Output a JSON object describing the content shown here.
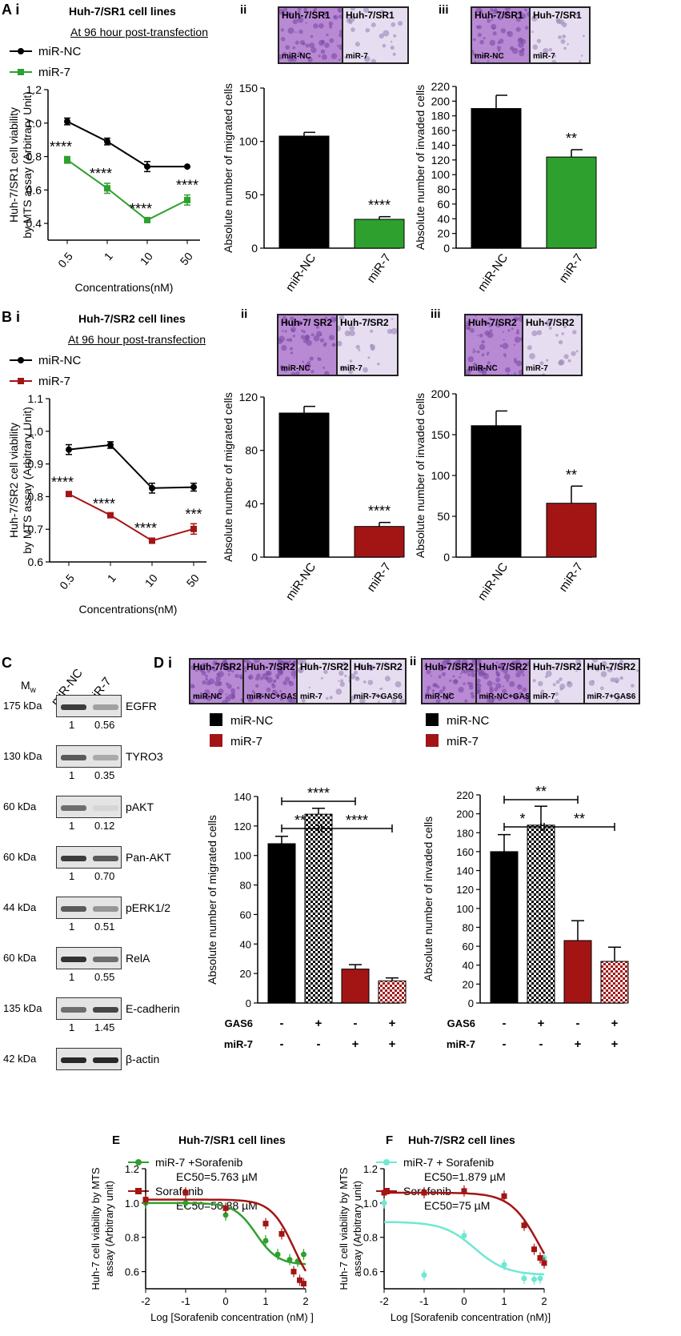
{
  "panels": {
    "A": "A i",
    "A_ii": "ii",
    "A_iii": "iii",
    "B": "B i",
    "B_ii": "ii",
    "B_iii": "iii",
    "C": "C",
    "D": "D i",
    "D_ii": "ii",
    "E": "E",
    "F": "F"
  },
  "titles": {
    "a_title": "Huh-7/SR1 cell lines",
    "a_sub": "At 96 hour post-transfection",
    "b_title": "Huh-7/SR2 cell lines",
    "b_sub": "At 96 hour post-transfection",
    "e_title": "Huh-7/SR1 cell lines",
    "f_title": "Huh-7/SR2 cell lines"
  },
  "micrographs": {
    "a_ii": [
      {
        "top": "Huh-7/SR1",
        "bottom": "miR-NC"
      },
      {
        "top": "Huh-7/SR1",
        "bottom": "miR-7"
      }
    ],
    "a_iii": [
      {
        "top": "Huh-7/SR1",
        "bottom": "miR-NC"
      },
      {
        "top": "Huh-7/SR1",
        "bottom": "miR-7"
      }
    ],
    "b_ii": [
      {
        "top": "Huh-7/ SR2",
        "bottom": "miR-NC"
      },
      {
        "top": "Huh-7/SR2",
        "bottom": "miR-7"
      }
    ],
    "b_iii": [
      {
        "top": "Huh-7/SR2",
        "bottom": "miR-NC"
      },
      {
        "top": "Huh-7/SR2",
        "bottom": "miR-7"
      }
    ],
    "d_i": [
      {
        "top": "Huh-7/SR2",
        "bottom": "miR-NC"
      },
      {
        "top": "Huh-7/SR2",
        "bottom": "miR-NC+GAS6"
      },
      {
        "top": "Huh-7/SR2",
        "bottom": "miR-7"
      },
      {
        "top": "Huh-7/SR2",
        "bottom": "miR-7+GAS6"
      }
    ],
    "d_ii": [
      {
        "top": "Huh-7/SR2",
        "bottom": "miR-NC"
      },
      {
        "top": "Huh-7/SR2",
        "bottom": "miR-NC+GAS6"
      },
      {
        "top": "Huh-7/SR2",
        "bottom": "miR-7"
      },
      {
        "top": "Huh-7/SR2",
        "bottom": "miR-7+GAS6"
      }
    ]
  },
  "blot": {
    "mw_header": "M",
    "mw_sub": "w",
    "lanes": [
      "miR-NC",
      "miR-7"
    ],
    "rows": [
      {
        "mw": "175 kDa",
        "protein": "EGFR",
        "q": [
          "1",
          "0.56"
        ],
        "intensity": [
          0.85,
          0.35
        ]
      },
      {
        "mw": "130 kDa",
        "protein": "TYRO3",
        "q": [
          "1",
          "0.35"
        ],
        "intensity": [
          0.7,
          0.3
        ]
      },
      {
        "mw": "60 kDa",
        "protein": "pAKT",
        "q": [
          "1",
          "0.12"
        ],
        "intensity": [
          0.6,
          0.08
        ]
      },
      {
        "mw": "60 kDa",
        "protein": "Pan-AKT",
        "q": [
          "1",
          "0.70"
        ],
        "intensity": [
          0.85,
          0.7
        ]
      },
      {
        "mw": "44 kDa",
        "protein": "pERK1/2",
        "q": [
          "1",
          "0.51"
        ],
        "intensity": [
          0.7,
          0.4
        ]
      },
      {
        "mw": "60 kDa",
        "protein": "RelA",
        "q": [
          "1",
          "0.55"
        ],
        "intensity": [
          0.9,
          0.6
        ]
      },
      {
        "mw": "135 kDa",
        "protein": "E-cadherin",
        "q": [
          "1",
          "1.45"
        ],
        "intensity": [
          0.6,
          0.8
        ]
      },
      {
        "mw": "42 kDa",
        "protein": "β-actin",
        "q": null,
        "intensity": [
          0.95,
          0.95
        ]
      }
    ]
  },
  "colors": {
    "black": "#000000",
    "green": "#2ea02e",
    "red": "#a31515",
    "cyan": "#6fe8d2",
    "purple": "#9b6fc4"
  },
  "chart_data": [
    {
      "id": "a_i",
      "type": "line",
      "x": [
        "0.5",
        "1",
        "10",
        "50"
      ],
      "series": [
        {
          "name": "miR-NC",
          "values": [
            1.01,
            0.89,
            0.74,
            0.74
          ],
          "errors": [
            0.02,
            0.02,
            0.03,
            0.0
          ]
        },
        {
          "name": "miR-7",
          "values": [
            0.78,
            0.61,
            0.42,
            0.54
          ],
          "errors": [
            0.02,
            0.03,
            0.01,
            0.03
          ]
        }
      ],
      "ylim": [
        0.3,
        1.2
      ],
      "yticks": [
        "0.4",
        "0.6",
        "0.8",
        "1.0",
        "1.2"
      ],
      "xlabel": "Concentrations(nM)",
      "ylabel": "Huh-7/SR1 cell viability",
      "ylabel2": "by MTS assay (Arbitrary Unit)",
      "annotations": [
        "****",
        "****",
        "****",
        "****"
      ]
    },
    {
      "id": "a_ii",
      "type": "bar",
      "categories": [
        "miR-NC",
        "miR-7"
      ],
      "values": [
        105,
        27
      ],
      "errors": [
        3.5,
        2.5
      ],
      "ylim": [
        0,
        150
      ],
      "yticks": [
        "0",
        "50",
        "100",
        "150"
      ],
      "ylabel": "Absolute number of migrated cells",
      "annotations": [
        "****"
      ]
    },
    {
      "id": "a_iii",
      "type": "bar",
      "categories": [
        "miR-NC",
        "miR-7"
      ],
      "values": [
        190,
        124
      ],
      "errors": [
        18,
        10
      ],
      "ylim": [
        0,
        220
      ],
      "yticks": [
        "0",
        "20",
        "40",
        "60",
        "80",
        "100",
        "120",
        "140",
        "160",
        "180",
        "200",
        "220"
      ],
      "ylabel": "Absolute number of invaded cells",
      "annotations": [
        "**"
      ]
    },
    {
      "id": "b_i",
      "type": "line",
      "x": [
        "0.5",
        "1",
        "10",
        "50"
      ],
      "series": [
        {
          "name": "miR-NC",
          "values": [
            0.944,
            0.958,
            0.826,
            0.829
          ],
          "errors": [
            0.015,
            0.01,
            0.015,
            0.012
          ]
        },
        {
          "name": "miR-7",
          "values": [
            0.808,
            0.743,
            0.665,
            0.701
          ],
          "errors": [
            0.006,
            0.005,
            0.008,
            0.016
          ]
        }
      ],
      "ylim": [
        0.6,
        1.1
      ],
      "yticks": [
        "0.6",
        "0.7",
        "0.8",
        "0.9",
        "1.0",
        "1.1"
      ],
      "xlabel": "Concentrations(nM)",
      "ylabel": "Huh-7/SR2 cell viability",
      "ylabel2": "by MTS assay (Arbitrary Unit)",
      "annotations": [
        "****",
        "****",
        "****",
        "***"
      ]
    },
    {
      "id": "b_ii",
      "type": "bar",
      "categories": [
        "miR-NC",
        "miR-7"
      ],
      "values": [
        108,
        23
      ],
      "errors": [
        5,
        3
      ],
      "ylim": [
        0,
        120
      ],
      "yticks": [
        "0",
        "40",
        "80",
        "120"
      ],
      "ylabel": "Absolute number of migrated cells",
      "annotations": [
        "****"
      ]
    },
    {
      "id": "b_iii",
      "type": "bar",
      "categories": [
        "miR-NC",
        "miR-7"
      ],
      "values": [
        161,
        66
      ],
      "errors": [
        18,
        21
      ],
      "ylim": [
        0,
        200
      ],
      "yticks": [
        "0",
        "50",
        "100",
        "150",
        "200"
      ],
      "ylabel": "Absolute number of invaded cells",
      "annotations": [
        "**"
      ]
    },
    {
      "id": "d_i",
      "type": "bar",
      "categories": [
        "miR-NC",
        "miR-NC+GAS6",
        "miR-7",
        "miR-7+GAS6"
      ],
      "values": [
        108,
        128,
        23,
        15
      ],
      "errors": [
        5,
        4,
        3,
        2
      ],
      "ylim": [
        0,
        140
      ],
      "yticks": [
        "0",
        "20",
        "40",
        "60",
        "80",
        "100",
        "120",
        "140"
      ],
      "ylabel": "Absolute number of migrated cells",
      "legend": [
        "miR-NC",
        "miR-7"
      ],
      "brackets": [
        {
          "from": 0,
          "to": 1,
          "label": "**"
        },
        {
          "from": 1,
          "to": 3,
          "label": "****"
        },
        {
          "from": 0,
          "to": 2,
          "label": "****"
        }
      ],
      "gas6_label": "GAS6",
      "gas6": [
        "-",
        "+",
        "-",
        "+"
      ],
      "mir7_label": "miR-7",
      "mir7": [
        "-",
        "-",
        "+",
        "+"
      ]
    },
    {
      "id": "d_ii",
      "type": "bar",
      "categories": [
        "miR-NC",
        "miR-NC+GAS6",
        "miR-7",
        "miR-7+GAS6"
      ],
      "values": [
        160,
        188,
        66,
        44
      ],
      "errors": [
        18,
        20,
        21,
        15
      ],
      "ylim": [
        0,
        220
      ],
      "yticks": [
        "0",
        "20",
        "40",
        "60",
        "80",
        "100",
        "120",
        "140",
        "160",
        "180",
        "200",
        "220"
      ],
      "ylabel": "Absolute number of invaded cells",
      "legend": [
        "miR-NC",
        "miR-7"
      ],
      "brackets": [
        {
          "from": 0,
          "to": 1,
          "label": "*"
        },
        {
          "from": 1,
          "to": 3,
          "label": "**"
        },
        {
          "from": 0,
          "to": 2,
          "label": "**"
        }
      ],
      "gas6_label": "GAS6",
      "gas6": [
        "-",
        "+",
        "-",
        "+"
      ],
      "mir7_label": "miR-7",
      "mir7": [
        "-",
        "-",
        "+",
        "+"
      ]
    },
    {
      "id": "e",
      "type": "scatter",
      "series": [
        {
          "name": "miR-7 +Sorafenib",
          "ec50": "EC50=5.763 µM",
          "points": [
            [
              -2,
              1.0
            ],
            [
              -1,
              1.0
            ],
            [
              0,
              0.93
            ],
            [
              1,
              0.78
            ],
            [
              1.3,
              0.7
            ],
            [
              1.6,
              0.67
            ],
            [
              1.8,
              0.66
            ],
            [
              1.95,
              0.7
            ]
          ],
          "curve": {
            "top": 1.0,
            "bottom": 0.64,
            "logec50": 0.76,
            "hill": 1.6
          }
        },
        {
          "name": "Sorafenib",
          "ec50": "EC50=50.88 µM",
          "points": [
            [
              -2,
              1.02
            ],
            [
              -1,
              1.06
            ],
            [
              0,
              0.97
            ],
            [
              1,
              0.88
            ],
            [
              1.4,
              0.82
            ],
            [
              1.7,
              0.6
            ],
            [
              1.85,
              0.55
            ],
            [
              1.95,
              0.53
            ]
          ],
          "curve": {
            "top": 1.02,
            "bottom": 0.45,
            "logec50": 1.71,
            "hill": 1.5
          }
        }
      ],
      "xlim": [
        -2,
        2
      ],
      "xticks": [
        "-2",
        "-1",
        "0",
        "1",
        "2"
      ],
      "ylim": [
        0.5,
        1.2
      ],
      "yticks": [
        "0.6",
        "0.8",
        "1.0",
        "1.2"
      ],
      "xlabel": "Log [Sorafenib concentration (nM) ]",
      "ylabel": "Huh-7 cell viability by MTS",
      "ylabel2": "assay (Arbitrary unit)"
    },
    {
      "id": "f",
      "type": "scatter",
      "series": [
        {
          "name": "miR-7 + Sorafenib",
          "ec50": "EC50=1.879 µM",
          "points": [
            [
              -2,
              1.0
            ],
            [
              -1,
              0.58
            ],
            [
              0,
              0.81
            ],
            [
              1,
              0.64
            ],
            [
              1.5,
              0.56
            ],
            [
              1.75,
              0.555
            ],
            [
              1.9,
              0.56
            ],
            [
              2,
              0.68
            ]
          ],
          "curve": {
            "top": 0.89,
            "bottom": 0.58,
            "logec50": 0.27,
            "hill": 1.1
          }
        },
        {
          "name": "Sorafenib",
          "ec50": "EC50=75 µM",
          "points": [
            [
              -2,
              1.06
            ],
            [
              -1,
              1.06
            ],
            [
              0,
              1.07
            ],
            [
              1,
              1.04
            ],
            [
              1.5,
              0.87
            ],
            [
              1.75,
              0.73
            ],
            [
              1.9,
              0.68
            ],
            [
              2,
              0.65
            ]
          ],
          "curve": {
            "top": 1.06,
            "bottom": 0.45,
            "logec50": 1.88,
            "hill": 1.2
          }
        }
      ],
      "xlim": [
        -2,
        2
      ],
      "xticks": [
        "-2",
        "-1",
        "0",
        "1",
        "2"
      ],
      "ylim": [
        0.5,
        1.2
      ],
      "yticks": [
        "0.6",
        "0.8",
        "1.0",
        "1.2"
      ],
      "xlabel": "Log [Sorafenib concentration (nM)]",
      "ylabel": "Huh-7 cell viability by MTS",
      "ylabel2": "assay (Arbitrary unit)"
    }
  ]
}
